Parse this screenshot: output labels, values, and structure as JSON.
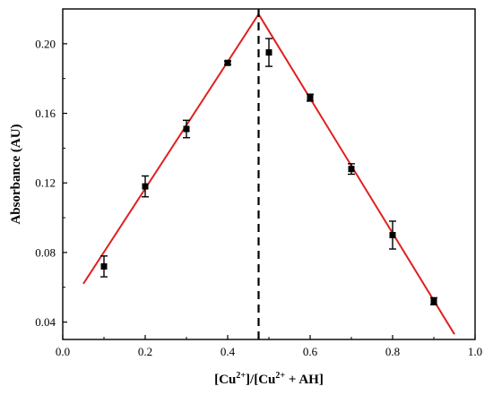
{
  "chart_data": {
    "type": "scatter",
    "xlabel": {
      "prefix": "[Cu",
      "sup1": "2+",
      "middle": "]/[Cu",
      "sup2": "2+",
      "suffix": " + AH]"
    },
    "ylabel": "Absorbance (AU)",
    "xlim": [
      0.0,
      1.0
    ],
    "ylim": [
      0.03,
      0.22
    ],
    "x_ticks": [
      0.0,
      0.2,
      0.4,
      0.6,
      0.8,
      1.0
    ],
    "x_tick_labels": [
      "0.0",
      "0.2",
      "0.4",
      "0.6",
      "0.8",
      "1.0"
    ],
    "y_ticks": [
      0.04,
      0.08,
      0.12,
      0.16,
      0.2
    ],
    "y_tick_labels": [
      "0.04",
      "0.08",
      "0.12",
      "0.16",
      "0.20"
    ],
    "grid": false,
    "series": [
      {
        "marker": "square",
        "color": "#000000",
        "points": [
          {
            "x": 0.1,
            "y": 0.072,
            "err": 0.006
          },
          {
            "x": 0.2,
            "y": 0.118,
            "err": 0.006
          },
          {
            "x": 0.3,
            "y": 0.151,
            "err": 0.005
          },
          {
            "x": 0.4,
            "y": 0.189,
            "err": 0.001
          },
          {
            "x": 0.5,
            "y": 0.195,
            "err": 0.008
          },
          {
            "x": 0.6,
            "y": 0.169,
            "err": 0.002
          },
          {
            "x": 0.7,
            "y": 0.128,
            "err": 0.003
          },
          {
            "x": 0.8,
            "y": 0.09,
            "err": 0.008
          },
          {
            "x": 0.9,
            "y": 0.052,
            "err": 0.002
          }
        ]
      }
    ],
    "fit_lines": [
      {
        "color": "#e02020",
        "x": [
          0.05,
          0.475
        ],
        "y": [
          0.062,
          0.217
        ]
      },
      {
        "color": "#e02020",
        "x": [
          0.475,
          0.95
        ],
        "y": [
          0.217,
          0.033
        ]
      }
    ],
    "vertical_line": {
      "x": 0.475,
      "style": "dashed",
      "color": "#000000"
    }
  }
}
